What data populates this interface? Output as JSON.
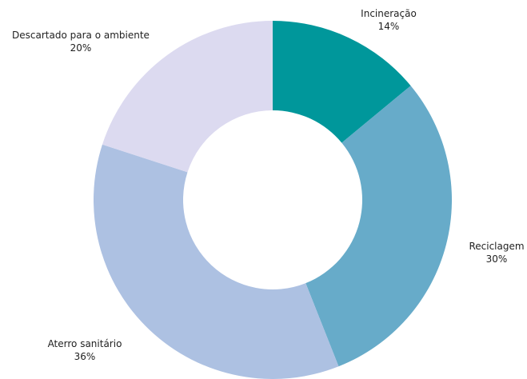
{
  "chart_data": {
    "type": "pie",
    "donut": true,
    "slices": [
      {
        "label": "Incineração",
        "value": 14,
        "value_label": "14%",
        "color": "#00979b"
      },
      {
        "label": "Reciclagem",
        "value": 30,
        "value_label": "30%",
        "color": "#67abc9"
      },
      {
        "label": "Aterro sanitário",
        "value": 36,
        "value_label": "36%",
        "color": "#adc1e2"
      },
      {
        "label": "Descartado para o ambiente",
        "value": 20,
        "value_label": "20%",
        "color": "#dcdaf0"
      }
    ],
    "start_angle_deg": 0,
    "direction": "clockwise",
    "legend": "none"
  }
}
